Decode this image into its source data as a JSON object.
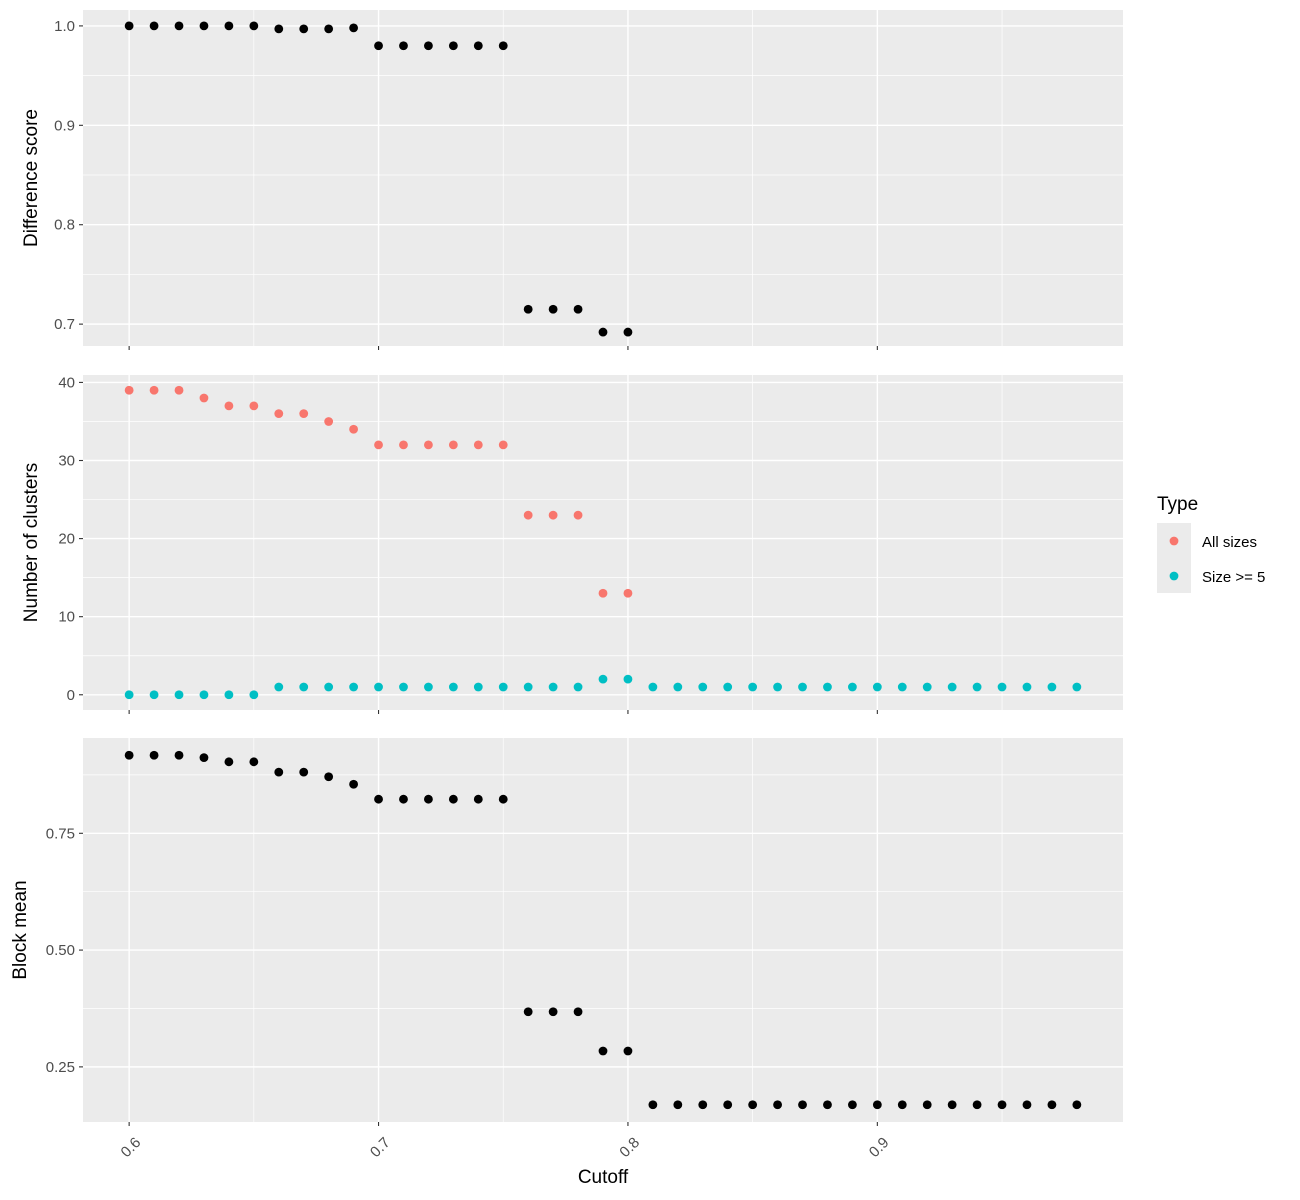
{
  "chart_data": {
    "type": "scatter",
    "xlabel": "Cutoff",
    "xlim": [
      0.5815,
      0.9985
    ],
    "x_ticks": [
      0.6,
      0.7,
      0.8,
      0.9
    ],
    "x_tick_labels": [
      "0.6",
      "0.7",
      "0.8",
      "0.9"
    ],
    "grid": true,
    "legend": {
      "title": "Type",
      "position": "right",
      "entries": [
        {
          "label": "All sizes",
          "color": "#F8766D"
        },
        {
          "label": "Size >= 5",
          "color": "#00BFC4"
        }
      ]
    },
    "panels": [
      {
        "ylabel": "Difference score",
        "ylim": [
          0.678,
          1.016
        ],
        "y_ticks": [
          0.7,
          0.8,
          0.9,
          1.0
        ],
        "y_tick_labels": [
          "0.7",
          "0.8",
          "0.9",
          "1.0"
        ],
        "series": [
          {
            "color": "#000000",
            "x": [
              0.6,
              0.61,
              0.62,
              0.63,
              0.64,
              0.65,
              0.66,
              0.67,
              0.68,
              0.69,
              0.7,
              0.71,
              0.72,
              0.73,
              0.74,
              0.75,
              0.76,
              0.77,
              0.78,
              0.79,
              0.8
            ],
            "y": [
              1.0,
              1.0,
              1.0,
              1.0,
              1.0,
              1.0,
              0.997,
              0.997,
              0.997,
              0.998,
              0.98,
              0.98,
              0.98,
              0.98,
              0.98,
              0.98,
              0.715,
              0.715,
              0.715,
              0.692,
              0.692
            ]
          }
        ]
      },
      {
        "ylabel": "Number of clusters",
        "ylim": [
          -1.95,
          40.95
        ],
        "y_ticks": [
          0,
          10,
          20,
          30,
          40
        ],
        "y_tick_labels": [
          "0",
          "10",
          "20",
          "30",
          "40"
        ],
        "series": [
          {
            "name": "All sizes",
            "color": "#F8766D",
            "x": [
              0.6,
              0.61,
              0.62,
              0.63,
              0.64,
              0.65,
              0.66,
              0.67,
              0.68,
              0.69,
              0.7,
              0.71,
              0.72,
              0.73,
              0.74,
              0.75,
              0.76,
              0.77,
              0.78,
              0.79,
              0.8
            ],
            "y": [
              39,
              39,
              39,
              38,
              37,
              37,
              36,
              36,
              35,
              34,
              32,
              32,
              32,
              32,
              32,
              32,
              23,
              23,
              23,
              13,
              13
            ]
          },
          {
            "name": "Size >= 5",
            "color": "#00BFC4",
            "x": [
              0.6,
              0.61,
              0.62,
              0.63,
              0.64,
              0.65,
              0.66,
              0.67,
              0.68,
              0.69,
              0.7,
              0.71,
              0.72,
              0.73,
              0.74,
              0.75,
              0.76,
              0.77,
              0.78,
              0.79,
              0.8,
              0.81,
              0.82,
              0.83,
              0.84,
              0.85,
              0.86,
              0.87,
              0.88,
              0.89,
              0.9,
              0.91,
              0.92,
              0.93,
              0.94,
              0.95,
              0.96,
              0.97,
              0.98
            ],
            "y": [
              0,
              0,
              0,
              0,
              0,
              0,
              1,
              1,
              1,
              1,
              1,
              1,
              1,
              1,
              1,
              1,
              1,
              1,
              1,
              2,
              2,
              1,
              1,
              1,
              1,
              1,
              1,
              1,
              1,
              1,
              1,
              1,
              1,
              1,
              1,
              1,
              1,
              1,
              1
            ]
          }
        ]
      },
      {
        "ylabel": "Block mean",
        "ylim": [
          0.132,
          0.954
        ],
        "y_ticks": [
          0.25,
          0.5,
          0.75
        ],
        "y_tick_labels": [
          "0.25",
          "0.50",
          "0.75"
        ],
        "series": [
          {
            "color": "#000000",
            "x": [
              0.6,
              0.61,
              0.62,
              0.63,
              0.64,
              0.65,
              0.66,
              0.67,
              0.68,
              0.69,
              0.7,
              0.71,
              0.72,
              0.73,
              0.74,
              0.75,
              0.76,
              0.77,
              0.78,
              0.79,
              0.8,
              0.81,
              0.82,
              0.83,
              0.84,
              0.85,
              0.86,
              0.87,
              0.88,
              0.89,
              0.9,
              0.91,
              0.92,
              0.93,
              0.94,
              0.95,
              0.96,
              0.97,
              0.98
            ],
            "y": [
              0.917,
              0.917,
              0.917,
              0.912,
              0.903,
              0.903,
              0.881,
              0.881,
              0.871,
              0.855,
              0.823,
              0.823,
              0.823,
              0.823,
              0.823,
              0.823,
              0.368,
              0.368,
              0.368,
              0.284,
              0.284,
              0.169,
              0.169,
              0.169,
              0.169,
              0.169,
              0.169,
              0.169,
              0.169,
              0.169,
              0.169,
              0.169,
              0.169,
              0.169,
              0.169,
              0.169,
              0.169,
              0.169,
              0.169
            ]
          }
        ]
      }
    ]
  }
}
